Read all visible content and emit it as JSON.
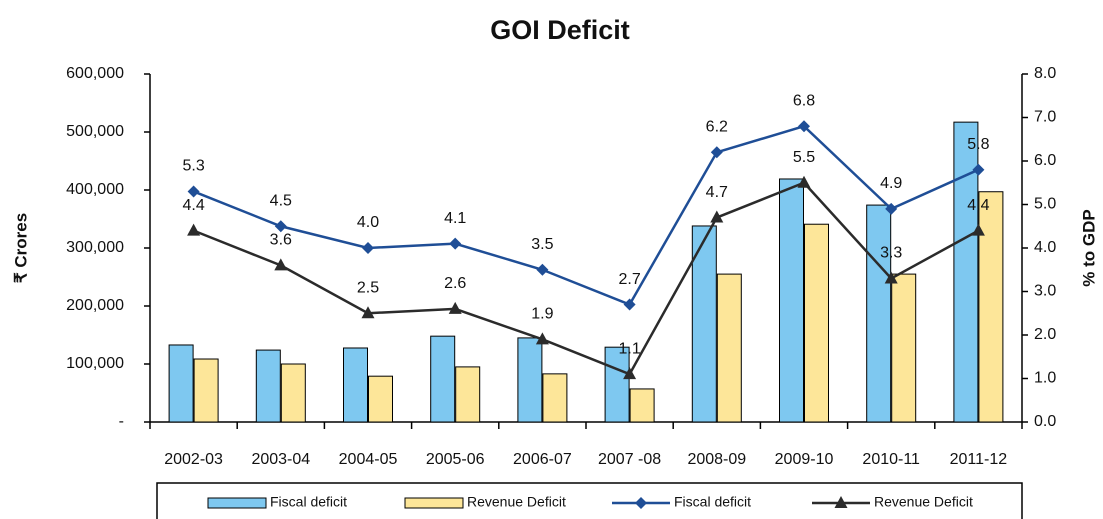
{
  "chart_data": {
    "type": "combo",
    "title": "GOI Deficit",
    "y_label": "₹ Crores",
    "y2_label": "% to GDP",
    "categories": [
      "2002-03",
      "2003-04",
      "2004-05",
      "2005-06",
      "2006-07",
      "2007 -08",
      "2008-09",
      "2009-10",
      "2010-11",
      "2011-12"
    ],
    "series": [
      {
        "name": "Fiscal deficit",
        "type": "bar",
        "color": "#7ec8f0",
        "values": [
          132800,
          124000,
          127600,
          148000,
          145000,
          129000,
          338000,
          419000,
          374000,
          517000
        ]
      },
      {
        "name": "Revenue Deficit",
        "type": "bar",
        "color": "#fde699",
        "values": [
          108600,
          100000,
          79000,
          95000,
          83000,
          57000,
          255000,
          341000,
          255000,
          397000
        ]
      },
      {
        "name": "Fiscal deficit",
        "type": "line",
        "axis": "y2",
        "marker": "diamond",
        "color": "#1f4e96",
        "values": [
          5.3,
          4.5,
          4.0,
          4.1,
          3.5,
          2.7,
          6.2,
          6.8,
          4.9,
          5.8
        ],
        "value_labels": [
          "5.3",
          "4.5",
          "4.0",
          "4.1",
          "3.5",
          "2.7",
          "6.2",
          "6.8",
          "4.9",
          "5.8"
        ]
      },
      {
        "name": "Revenue Deficit",
        "type": "line",
        "axis": "y2",
        "marker": "triangle",
        "color": "#2b2b2b",
        "values": [
          4.4,
          3.6,
          2.5,
          2.6,
          1.9,
          1.1,
          4.7,
          5.5,
          3.3,
          4.4
        ],
        "value_labels": [
          "4.4",
          "3.6",
          "2.5",
          "2.6",
          "1.9",
          "1.1",
          "4.7",
          "5.5",
          "3.3",
          "4.4"
        ]
      }
    ],
    "ylim": [
      0,
      600000
    ],
    "yticks": [
      {
        "value": 0,
        "label": "-"
      },
      {
        "value": 100000,
        "label": "100,000"
      },
      {
        "value": 200000,
        "label": "200,000"
      },
      {
        "value": 300000,
        "label": "300,000"
      },
      {
        "value": 400000,
        "label": "400,000"
      },
      {
        "value": 500000,
        "label": "500,000"
      },
      {
        "value": 600000,
        "label": "600,000"
      }
    ],
    "y2lim": [
      0,
      8
    ],
    "y2ticks": [
      {
        "value": 0,
        "label": "0.0"
      },
      {
        "value": 1,
        "label": "1.0"
      },
      {
        "value": 2,
        "label": "2.0"
      },
      {
        "value": 3,
        "label": "3.0"
      },
      {
        "value": 4,
        "label": "4.0"
      },
      {
        "value": 5,
        "label": "5.0"
      },
      {
        "value": 6,
        "label": "6.0"
      },
      {
        "value": 7,
        "label": "7.0"
      },
      {
        "value": 8,
        "label": "8.0"
      }
    ],
    "legend": "bottom"
  }
}
